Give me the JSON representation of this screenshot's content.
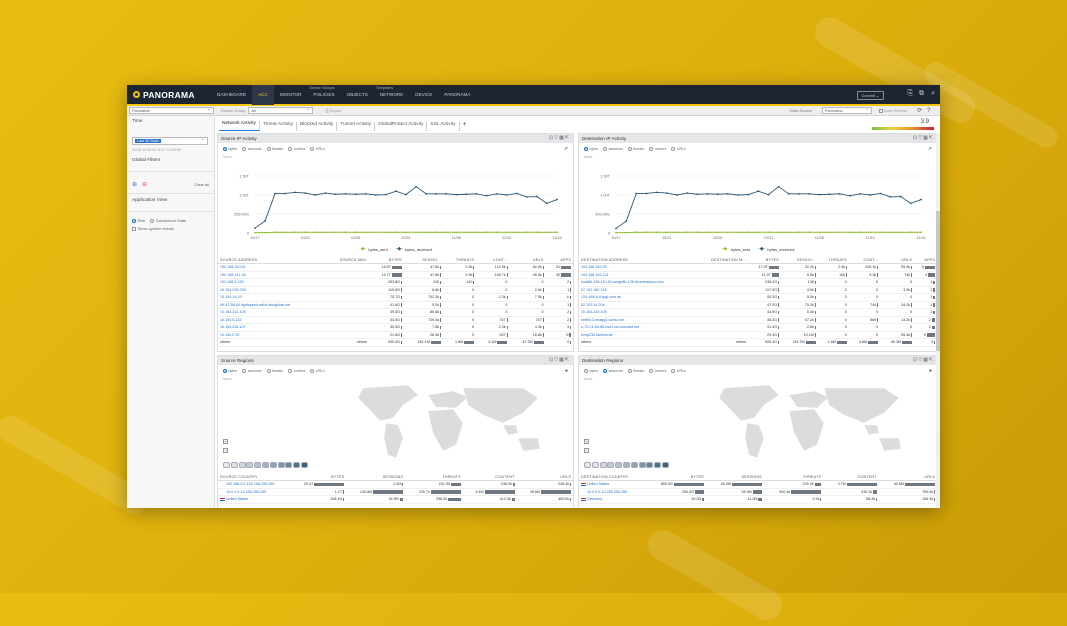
{
  "app": {
    "logo": "PANORAMA",
    "commit_label": "Commit",
    "nav": [
      {
        "label": "DASHBOARD"
      },
      {
        "label": "ACC",
        "active": true
      },
      {
        "label": "MONITOR"
      },
      {
        "label": "POLICIES"
      },
      {
        "label": "OBJECTS"
      },
      {
        "label": "NETWORK"
      },
      {
        "label": "DEVICE"
      },
      {
        "label": "PANORAMA"
      }
    ],
    "nav_groups": {
      "device_groups": "Device Groups",
      "templates": "Templates"
    }
  },
  "toolbar": {
    "context": "Panorama",
    "device_group_label": "Device Group",
    "device_group_value": "All",
    "export_label": "Export",
    "data_source_label": "Data Source",
    "data_source_value": "Panorama",
    "auto_refresh_label": "Auto Refresh",
    "risk_value": "3.9"
  },
  "sidebar": {
    "time_label": "Time",
    "time_value": "Last 30 Days",
    "time_range": "10/18 13:30:00-11/17 13:29:59",
    "global_filters_label": "Global Filters",
    "clear_all": "Clear all",
    "app_view_label": "Application View",
    "risk_option": "Risk",
    "sanctioned_option": "Sanctioned State",
    "show_system_events": "Show system events"
  },
  "tabs": [
    "Network Activity",
    "Threat Activity",
    "Blocked Activity",
    "Tunnel Activity",
    "GlobalProtect Activity",
    "SSL Activity"
  ],
  "radios": [
    "bytes",
    "sessions",
    "threats",
    "content",
    "URLs"
  ],
  "source_ip": {
    "title": "Source IP Activity",
    "selected_radio": "bytes",
    "unit_label": "Name",
    "columns": [
      "SOURCE ADDRESS",
      "SOURCE MAC",
      "BYTES",
      "SESSIO...",
      "THREATS",
      "CONT...",
      "URLS",
      "APPS"
    ],
    "rows": [
      [
        "192.168.140.51",
        "",
        "14.8T",
        "47.6k",
        "2.9k",
        "114.9k",
        "62.0k",
        "31"
      ],
      [
        "192.168.141.26",
        "",
        "14.7T",
        "47.8k",
        "2.9k",
        "106.7k",
        "45.5k",
        "30"
      ],
      [
        "192.168.3.199",
        "",
        "253.8G",
        "240",
        "140",
        "0",
        "0",
        "2"
      ],
      [
        "10.154.236.228",
        "",
        "119.8G",
        "6.8k",
        "0",
        "0",
        "2.6k",
        "1"
      ],
      [
        "10.154.14.29",
        "",
        "75.7G",
        "702.3k",
        "0",
        "2.3k",
        "7.5k",
        "4"
      ],
      [
        "99-47-56-84.lightspeed.wlfrct.sbcglobal.net",
        "",
        "41.6G",
        "5.0k",
        "0",
        "0",
        "0",
        "1"
      ],
      [
        "10.154.212.105",
        "",
        "39.5G",
        "85.8k",
        "0",
        "0",
        "0",
        "2"
      ],
      [
        "10.154.5.132",
        "",
        "34.9G",
        "729.4k",
        "0",
        "747",
        "747",
        "2"
      ],
      [
        "10.154.228.137",
        "",
        "30.5G",
        "7.8k",
        "0",
        "2.3k",
        "4.3k",
        "3"
      ],
      [
        "10.154.2.20",
        "",
        "21.8G",
        "26.9k",
        "0",
        "537",
        "16.8k",
        "5"
      ],
      [
        "others",
        "others",
        "930.4G",
        "161.1M",
        "1.8M",
        "4.1M",
        "47.2M",
        "0"
      ]
    ]
  },
  "dest_ip": {
    "title": "Destination IP Activity",
    "selected_radio": "bytes",
    "unit_label": "Name",
    "columns": [
      "DESTINATION ADDRESS",
      "DESTINATION M...",
      "BYTES",
      "SESSIO...",
      "THREATS",
      "CONT...",
      "URLS",
      "APPS"
    ],
    "rows": [
      [
        "192.168.163.25",
        "",
        "17.0T",
        "32.2k",
        "2.4k",
        "209.1k",
        "59.4k",
        "6"
      ],
      [
        "192.168.162.121",
        "",
        "11.9T",
        "5.5k",
        "10k",
        "9.3k",
        "74k",
        "4"
      ],
      [
        "host86-136-110-54.range86-136.btcentralplus.com",
        "",
        "248.4G",
        "138",
        "0",
        "0",
        "0",
        "1"
      ],
      [
        "67.192.180.218",
        "",
        "117.9G",
        "4.5k",
        "0",
        "0",
        "3.9k",
        "1"
      ],
      [
        "124-168-6-6.tpgi.com.au",
        "",
        "50.3G",
        "5.3k",
        "0",
        "0",
        "0",
        "1"
      ],
      [
        "52.120.14.204",
        "",
        "47.2G",
        "70.3k",
        "0",
        "744",
        "34.2k",
        "1"
      ],
      [
        "10.154.220.109",
        "",
        "44.9G",
        "5.4k",
        "0",
        "0",
        "0",
        "1"
      ],
      [
        "netflix-3-tmagg2.comic.net",
        "",
        "38.3G",
        "57.2k",
        "0",
        "569",
        "13.2k",
        "2"
      ],
      [
        "c-73-21-69-88.hsd1.ca.comcast.net",
        "",
        "31.4G",
        "2.6k",
        "0",
        "0",
        "0",
        "2"
      ],
      [
        "smtp230.facflow.de",
        "",
        "29.3G",
        "10.1M",
        "0",
        "0",
        "56.4k",
        "5"
      ],
      [
        "others",
        "others",
        "926.4G",
        "149.7M",
        "1.6M",
        "4.8M",
        "46.3M",
        "0"
      ]
    ]
  },
  "source_regions": {
    "title": "Source Regions",
    "selected_radio": "bytes",
    "unit_label": "Name",
    "columns": [
      "SOURCE COUNTRY",
      "BYTES",
      "SESSIONS",
      "THREATS",
      "CONTENT",
      "URLS"
    ],
    "rows": [
      [
        "192.168.0.0-192.168.255.255",
        "29.4T",
        "2.4M",
        "231.5k",
        "248.9k",
        "248.4k"
      ],
      [
        "10.0.0.0-10.255.255.255",
        "1.1T",
        "130.8M",
        "705.7k",
        "4.4M",
        "45.6M"
      ],
      [
        "United States",
        "108.4G",
        "15.9M",
        "296.2k",
        "412.5k",
        "400.5k"
      ]
    ]
  },
  "dest_regions": {
    "title": "Destination Regions",
    "selected_radio": "sessions",
    "unit_label": "Name",
    "columns": [
      "DESTINATION COUNTRY",
      "BYTES",
      "SESSIONS",
      "THREATS",
      "CONTENT",
      "URLS"
    ],
    "rows": [
      [
        "United States",
        "859.9G",
        "94.0M",
        "209.2k",
        "3.7M",
        "40.6M"
      ],
      [
        "10.0.0.0-10.255.255.255",
        "250.5G",
        "28.9M",
        "950.4k",
        "439.3k",
        "759.4k"
      ],
      [
        "Germany",
        "40.0G",
        "11.0M",
        "5.3k",
        "58.4k",
        "156.3k"
      ]
    ]
  },
  "chart_data": [
    {
      "type": "line",
      "title": "",
      "xlabel": "",
      "ylabel": "",
      "ylim": [
        0,
        1.5
      ],
      "y_unit": "T",
      "yticks": [
        "0",
        "500.00G",
        "1.00T",
        "1.50T"
      ],
      "xticks": [
        "10/17",
        "10/21",
        "10/26",
        "10/31",
        "11/05",
        "11/10",
        "11/16"
      ],
      "series": [
        {
          "name": "bytes_sent",
          "color": "#8fbf2a",
          "values": [
            0.01,
            0.01,
            0.02,
            0.02,
            0.02,
            0.02,
            0.02,
            0.02,
            0.02,
            0.02,
            0.02,
            0.02,
            0.02,
            0.02,
            0.02,
            0.02,
            0.02,
            0.02,
            0.02,
            0.02,
            0.02,
            0.02,
            0.02,
            0.02,
            0.02,
            0.02,
            0.02,
            0.02,
            0.02,
            0.02,
            0.02
          ]
        },
        {
          "name": "bytes_received",
          "color": "#2b5677",
          "values": [
            0.13,
            0.32,
            1.04,
            1.04,
            1.07,
            1.05,
            1.0,
            1.05,
            1.02,
            1.03,
            1.02,
            1.03,
            1.0,
            1.01,
            1.1,
            1.01,
            1.22,
            1.03,
            1.03,
            1.03,
            1.01,
            1.02,
            1.03,
            0.98,
            1.03,
            1.0,
            1.04,
            0.95,
            0.96,
            0.78,
            0.88
          ]
        }
      ],
      "grid": true,
      "legend": "bottom"
    },
    {
      "type": "line",
      "title": "",
      "xlabel": "",
      "ylabel": "",
      "ylim": [
        0,
        1.5
      ],
      "y_unit": "T",
      "yticks": [
        "0",
        "500.00G",
        "1.00T",
        "1.50T"
      ],
      "xticks": [
        "10/17",
        "10/21",
        "10/26",
        "10/31",
        "11/05",
        "11/10",
        "11/16"
      ],
      "series": [
        {
          "name": "bytes_sent",
          "color": "#8fbf2a",
          "values": [
            0.01,
            0.01,
            0.02,
            0.02,
            0.02,
            0.02,
            0.02,
            0.02,
            0.02,
            0.02,
            0.02,
            0.02,
            0.02,
            0.02,
            0.02,
            0.02,
            0.02,
            0.02,
            0.02,
            0.02,
            0.02,
            0.02,
            0.02,
            0.02,
            0.02,
            0.02,
            0.02,
            0.02,
            0.02,
            0.02,
            0.02
          ]
        },
        {
          "name": "bytes_received",
          "color": "#2b5677",
          "values": [
            0.12,
            0.31,
            1.04,
            1.04,
            1.07,
            1.05,
            1.0,
            1.05,
            1.02,
            1.03,
            1.02,
            1.03,
            1.0,
            1.01,
            1.1,
            1.01,
            1.22,
            1.03,
            1.03,
            1.03,
            1.01,
            1.02,
            1.03,
            0.98,
            1.03,
            1.0,
            1.04,
            0.95,
            0.96,
            0.78,
            0.88
          ]
        }
      ],
      "grid": true,
      "legend": "bottom"
    }
  ]
}
